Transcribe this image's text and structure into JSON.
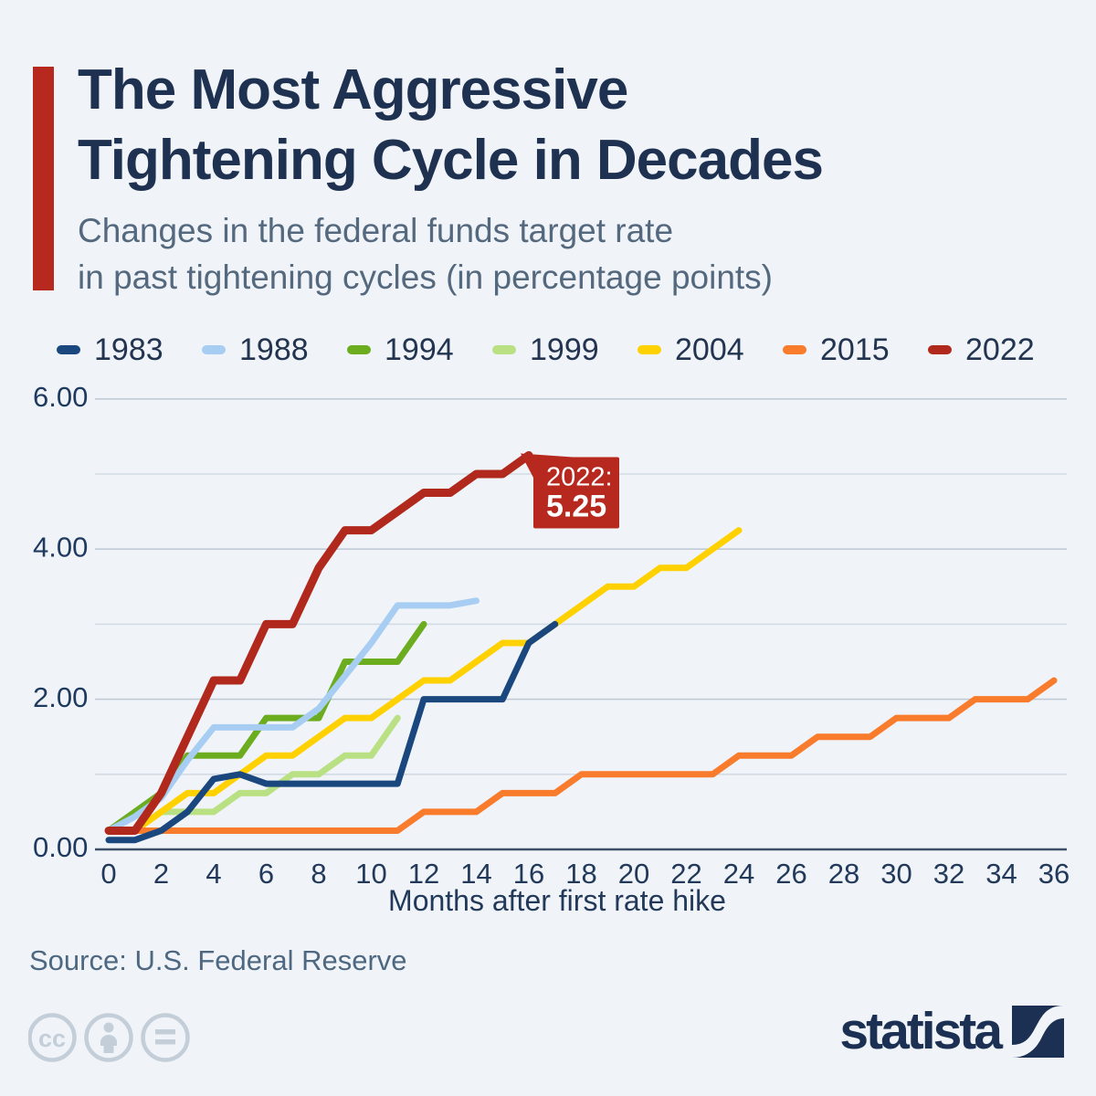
{
  "page": {
    "background": "#f0f4f9",
    "accent_color": "#b7281e"
  },
  "header": {
    "title_line1": "The Most Aggressive",
    "title_line2": "Tightening Cycle in Decades",
    "subtitle_line1": "Changes in the federal funds target rate",
    "subtitle_line2": "in past tightening cycles (in percentage points)"
  },
  "chart_data": {
    "type": "line",
    "title": "Changes in the federal funds target rate in past tightening cycles (in percentage points)",
    "xlabel": "Months after first rate hike",
    "ylabel": "",
    "xlim": [
      0,
      36
    ],
    "ylim": [
      0,
      6
    ],
    "grid": "horizontal",
    "legend_position": "top",
    "x_tick_labels": [
      "0",
      "2",
      "4",
      "6",
      "8",
      "10",
      "12",
      "14",
      "16",
      "18",
      "20",
      "22",
      "24",
      "26",
      "28",
      "30",
      "32",
      "34",
      "36"
    ],
    "y_ticks": [
      {
        "v": 0,
        "label": "0.00"
      },
      {
        "v": 2,
        "label": "2.00"
      },
      {
        "v": 4,
        "label": "4.00"
      },
      {
        "v": 6,
        "label": "6.00"
      }
    ],
    "series": [
      {
        "name": "1983",
        "color": "#1a477e",
        "stroke_width": 7,
        "z": 5,
        "values": [
          0.125,
          0.125,
          0.25,
          0.5,
          0.9375,
          1.0,
          0.875,
          0.875,
          0.875,
          0.875,
          0.875,
          0.875,
          2.0,
          2.0,
          2.0,
          2.0,
          2.75,
          3.0
        ]
      },
      {
        "name": "1988",
        "color": "#a7cdf2",
        "stroke_width": 7,
        "z": 2,
        "values": [
          0.25,
          0.4375,
          0.6875,
          1.1875,
          1.625,
          1.625,
          1.625,
          1.625,
          1.875,
          2.3125,
          2.75,
          3.25,
          3.25,
          3.25,
          3.3125
        ]
      },
      {
        "name": "1994",
        "color": "#6cad20",
        "stroke_width": 7,
        "z": 1,
        "values": [
          0.25,
          0.5,
          0.75,
          1.25,
          1.25,
          1.25,
          1.75,
          1.75,
          1.75,
          2.5,
          2.5,
          2.5,
          3.0
        ]
      },
      {
        "name": "1999",
        "color": "#b9e082",
        "stroke_width": 7,
        "z": 0,
        "values": [
          0.25,
          0.25,
          0.5,
          0.5,
          0.5,
          0.75,
          0.75,
          1.0,
          1.0,
          1.25,
          1.25,
          1.75
        ]
      },
      {
        "name": "2004",
        "color": "#ffd100",
        "stroke_width": 7,
        "z": 3,
        "values": [
          0.25,
          0.25,
          0.5,
          0.75,
          0.75,
          1.0,
          1.25,
          1.25,
          1.5,
          1.75,
          1.75,
          2.0,
          2.25,
          2.25,
          2.5,
          2.75,
          2.75,
          3.0,
          3.25,
          3.5,
          3.5,
          3.75,
          3.75,
          4.0,
          4.25
        ]
      },
      {
        "name": "2015",
        "color": "#f97b2c",
        "stroke_width": 7,
        "z": 4,
        "values": [
          0.25,
          0.25,
          0.25,
          0.25,
          0.25,
          0.25,
          0.25,
          0.25,
          0.25,
          0.25,
          0.25,
          0.25,
          0.5,
          0.5,
          0.5,
          0.75,
          0.75,
          0.75,
          1.0,
          1.0,
          1.0,
          1.0,
          1.0,
          1.0,
          1.25,
          1.25,
          1.25,
          1.5,
          1.5,
          1.5,
          1.75,
          1.75,
          1.75,
          2.0,
          2.0,
          2.0,
          2.25
        ]
      },
      {
        "name": "2022",
        "color": "#b0291c",
        "stroke_width": 9,
        "z": 6,
        "values": [
          0.25,
          0.25,
          0.75,
          1.5,
          2.25,
          2.25,
          3.0,
          3.0,
          3.75,
          4.25,
          4.25,
          4.5,
          4.75,
          4.75,
          5.0,
          5.0,
          5.25
        ]
      }
    ],
    "annotation": {
      "label": "2022:",
      "value": "5.25",
      "month": 16,
      "rate": 5.25,
      "bg": "#b7281e",
      "text_color": "#ffffff"
    }
  },
  "footer": {
    "source": "Source: U.S. Federal Reserve",
    "license_icons": [
      "cc-icon",
      "attribution-person-icon",
      "equals-icon"
    ],
    "brand": "statista"
  }
}
